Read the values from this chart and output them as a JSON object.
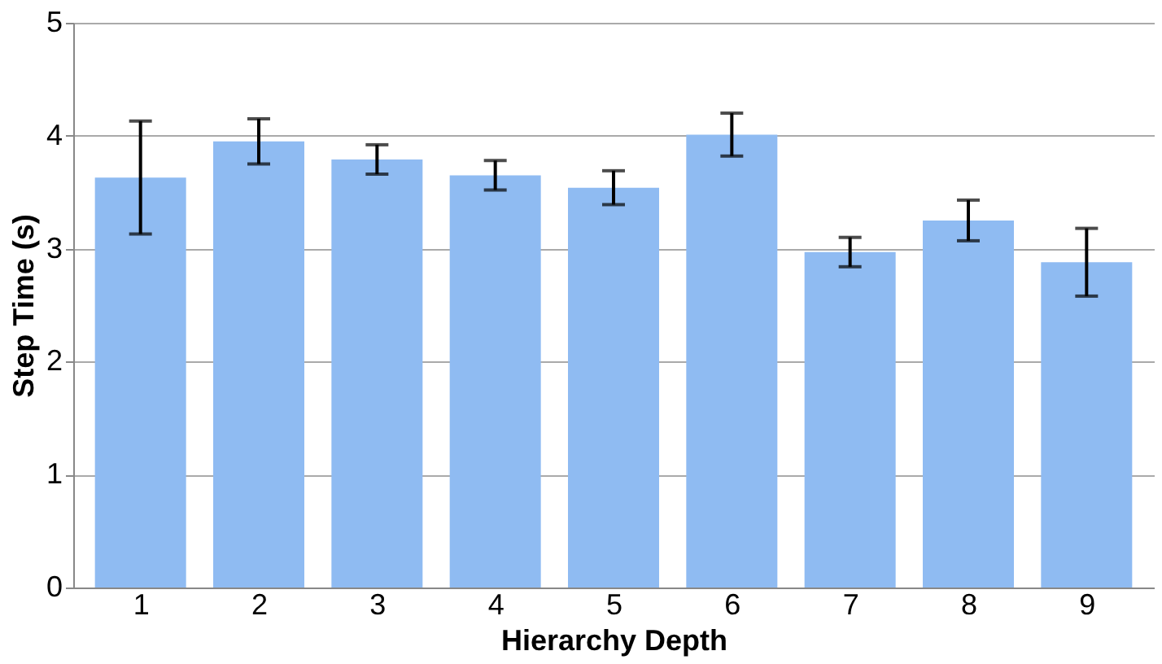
{
  "chart_data": {
    "type": "bar",
    "xlabel": "Hierarchy Depth",
    "ylabel": "Step Time (s)",
    "categories": [
      "1",
      "2",
      "3",
      "4",
      "5",
      "6",
      "7",
      "8",
      "9"
    ],
    "values": [
      3.63,
      3.95,
      3.79,
      3.65,
      3.54,
      4.01,
      2.97,
      3.25,
      2.88
    ],
    "errors": [
      0.5,
      0.2,
      0.13,
      0.13,
      0.15,
      0.19,
      0.13,
      0.18,
      0.3
    ],
    "color": "#8fbbf2",
    "ylim": [
      0,
      5
    ],
    "yticks": [
      0,
      1,
      2,
      3,
      4,
      5
    ],
    "grid": "y"
  }
}
